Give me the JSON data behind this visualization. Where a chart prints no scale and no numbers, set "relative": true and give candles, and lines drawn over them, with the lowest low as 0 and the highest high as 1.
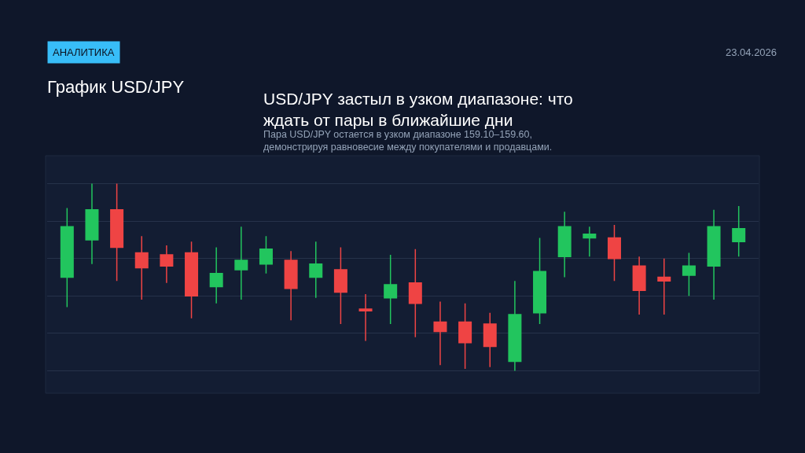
{
  "chart_data": {
    "type": "candlestick",
    "title": "USD/JPY застыл в узком диапазоне: что ждать от пары в ближайшие дни",
    "subtitle": "Пара USD/JPY остается в узком диапазоне 159.10–159.60, демонстрируя равновесие между покупателями и продавцами.",
    "annotations": [
      "АНАЛИТИКА",
      "23.04.2026",
      "График USD/JPY"
    ],
    "relative": true,
    "grid": true,
    "categories": [
      null,
      null,
      null,
      null,
      null,
      null,
      null,
      null,
      null,
      null,
      null,
      null,
      null,
      null,
      null,
      null,
      null,
      null,
      null,
      null,
      null,
      null,
      null,
      null,
      null,
      null,
      null,
      null
    ],
    "ohlc": [
      [
        0.5,
        0.87,
        0.34,
        0.77
      ],
      [
        0.7,
        1.0,
        0.57,
        0.86
      ],
      [
        0.86,
        1,
        0.48,
        0.66
      ],
      [
        0.63,
        0.72,
        0.38,
        0.55
      ],
      [
        0.62,
        0.67,
        0.47,
        0.56
      ],
      [
        0.63,
        0.69,
        0.28,
        0.4
      ],
      [
        0.45,
        0.66,
        0.36,
        0.52
      ],
      [
        0.54,
        0.77,
        0.38,
        0.59
      ],
      [
        0.57,
        0.72,
        0.52,
        0.65
      ],
      [
        0.59,
        0.64,
        0.27,
        0.44
      ],
      [
        0.5,
        0.69,
        0.39,
        0.57
      ],
      [
        0.54,
        0.66,
        0.25,
        0.42
      ],
      [
        0.33,
        0.41,
        0.16,
        0.32
      ],
      [
        0.39,
        0.62,
        0.25,
        0.46
      ],
      [
        0.47,
        0.65,
        0.18,
        0.36
      ],
      [
        0.26,
        0.37,
        0.03,
        0.21
      ],
      [
        0.26,
        0.36,
        0.01,
        0.15
      ],
      [
        0.25,
        0.31,
        0.02,
        0.13
      ],
      [
        0.05,
        0.48,
        0,
        0.3
      ],
      [
        0.31,
        0.71,
        0.25,
        0.53
      ],
      [
        0.61,
        0.85,
        0.5,
        0.77
      ],
      [
        0.71,
        0.77,
        0.61,
        0.73
      ],
      [
        0.71,
        0.78,
        0.48,
        0.6
      ],
      [
        0.56,
        0.61,
        0.3,
        0.43
      ],
      [
        0.5,
        0.6,
        0.3,
        0.48
      ],
      [
        0.51,
        0.63,
        0.4,
        0.56
      ],
      [
        0.56,
        0.86,
        0.38,
        0.77
      ],
      [
        0.69,
        0.88,
        0.61,
        0.76
      ]
    ],
    "colors": [
      "#22c55e",
      "#22c55e",
      "#ef4444",
      "#ef4444",
      "#ef4444",
      "#ef4444",
      "#22c55e",
      "#22c55e",
      "#22c55e",
      "#ef4444",
      "#22c55e",
      "#ef4444",
      "#ef4444",
      "#22c55e",
      "#ef4444",
      "#ef4444",
      "#ef4444",
      "#ef4444",
      "#22c55e",
      "#22c55e",
      "#22c55e",
      "#22c55e",
      "#ef4444",
      "#ef4444",
      "#ef4444",
      "#22c55e",
      "#22c55e",
      "#22c55e"
    ]
  }
}
